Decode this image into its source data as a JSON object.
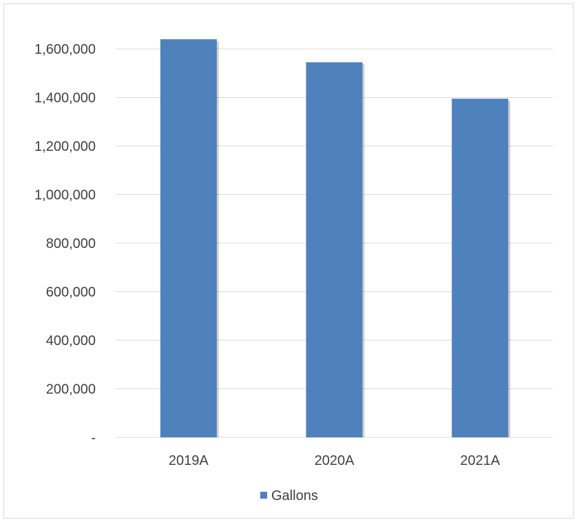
{
  "chart_data": {
    "type": "bar",
    "categories": [
      "2019A",
      "2020A",
      "2021A"
    ],
    "series": [
      {
        "name": "Gallons",
        "values": [
          1640000,
          1545000,
          1395000
        ],
        "color": "#4f81bd"
      }
    ],
    "ylim": [
      0,
      1600000
    ],
    "yticks": [
      0,
      200000,
      400000,
      600000,
      800000,
      1000000,
      1200000,
      1400000,
      1600000
    ],
    "ytick_labels": [
      "-",
      "200,000",
      "400,000",
      "600,000",
      "800,000",
      "1,000,000",
      "1,200,000",
      "1,400,000",
      "1,600,000"
    ],
    "grid": true,
    "legend_position": "bottom",
    "gridline_color": "#d9d9d9"
  }
}
